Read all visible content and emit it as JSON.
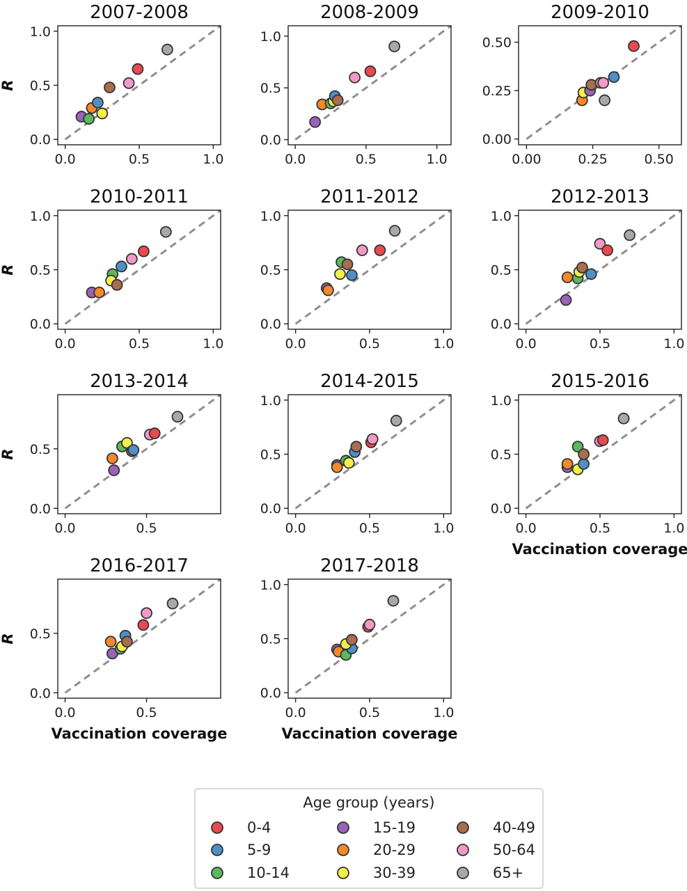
{
  "colors": {
    "0-4": "#e84a4f",
    "5-9": "#4f8fc6",
    "10-14": "#5cb85c",
    "15-19": "#9a62b8",
    "20-29": "#f5882b",
    "30-39": "#f3f04a",
    "40-49": "#a86e4f",
    "50-64": "#f29ac6",
    "65+": "#a8a8a8"
  },
  "legend": {
    "title": "Age group (years)",
    "entries": [
      "0-4",
      "5-9",
      "10-14",
      "15-19",
      "20-29",
      "30-39",
      "40-49",
      "50-64",
      "65+"
    ]
  },
  "chart_data": [
    {
      "type": "scatter",
      "title": "2007-2008",
      "xlim": [
        -0.05,
        1.05
      ],
      "ylim": [
        -0.05,
        1.05
      ],
      "xticks": [
        0.0,
        0.5,
        1.0
      ],
      "xtick_labels": [
        "0.0",
        "0.5",
        "1.0"
      ],
      "yticks": [
        0.0,
        0.5,
        1.0
      ],
      "ytick_labels": [
        "0.0",
        "0.5",
        "1.0"
      ],
      "ylabel": "R",
      "xlabel": "",
      "diagonal": true,
      "points": [
        {
          "group": "15-19",
          "x": 0.11,
          "y": 0.21
        },
        {
          "group": "10-14",
          "x": 0.16,
          "y": 0.19
        },
        {
          "group": "20-29",
          "x": 0.18,
          "y": 0.29
        },
        {
          "group": "5-9",
          "x": 0.22,
          "y": 0.34
        },
        {
          "group": "30-39",
          "x": 0.25,
          "y": 0.24
        },
        {
          "group": "40-49",
          "x": 0.3,
          "y": 0.48
        },
        {
          "group": "50-64",
          "x": 0.43,
          "y": 0.52
        },
        {
          "group": "0-4",
          "x": 0.49,
          "y": 0.65
        },
        {
          "group": "65+",
          "x": 0.69,
          "y": 0.83
        }
      ]
    },
    {
      "type": "scatter",
      "title": "2008-2009",
      "xlim": [
        -0.05,
        1.1
      ],
      "ylim": [
        -0.05,
        1.1
      ],
      "xticks": [
        0.0,
        0.5,
        1.0
      ],
      "xtick_labels": [
        "0.0",
        "0.5",
        "1.0"
      ],
      "yticks": [
        0.0,
        0.5,
        1.0
      ],
      "ytick_labels": [
        "0.0",
        "0.5",
        "1.0"
      ],
      "ylabel": "",
      "xlabel": "",
      "diagonal": true,
      "points": [
        {
          "group": "15-19",
          "x": 0.14,
          "y": 0.17
        },
        {
          "group": "20-29",
          "x": 0.19,
          "y": 0.34
        },
        {
          "group": "10-14",
          "x": 0.25,
          "y": 0.35
        },
        {
          "group": "30-39",
          "x": 0.27,
          "y": 0.37
        },
        {
          "group": "5-9",
          "x": 0.28,
          "y": 0.42
        },
        {
          "group": "40-49",
          "x": 0.3,
          "y": 0.38
        },
        {
          "group": "50-64",
          "x": 0.42,
          "y": 0.6
        },
        {
          "group": "0-4",
          "x": 0.53,
          "y": 0.66
        },
        {
          "group": "65+",
          "x": 0.7,
          "y": 0.9
        }
      ]
    },
    {
      "type": "scatter",
      "title": "2009-2010",
      "xlim": [
        -0.03,
        0.585
      ],
      "ylim": [
        -0.03,
        0.585
      ],
      "xticks": [
        0.0,
        0.25,
        0.5
      ],
      "xtick_labels": [
        "0.00",
        "0.25",
        "0.50"
      ],
      "yticks": [
        0.0,
        0.25,
        0.5
      ],
      "ytick_labels": [
        "0.00",
        "0.25",
        "0.50"
      ],
      "ylabel": "",
      "xlabel": "",
      "diagonal": true,
      "points": [
        {
          "group": "20-29",
          "x": 0.21,
          "y": 0.2
        },
        {
          "group": "30-39",
          "x": 0.215,
          "y": 0.24
        },
        {
          "group": "15-19",
          "x": 0.24,
          "y": 0.25
        },
        {
          "group": "40-49",
          "x": 0.245,
          "y": 0.28
        },
        {
          "group": "65+",
          "x": 0.295,
          "y": 0.2
        },
        {
          "group": "65+",
          "x": 0.28,
          "y": 0.29
        },
        {
          "group": "50-64",
          "x": 0.29,
          "y": 0.29
        },
        {
          "group": "5-9",
          "x": 0.33,
          "y": 0.32
        },
        {
          "group": "0-4",
          "x": 0.405,
          "y": 0.48
        }
      ]
    },
    {
      "type": "scatter",
      "title": "2010-2011",
      "xlim": [
        -0.05,
        1.05
      ],
      "ylim": [
        -0.05,
        1.05
      ],
      "xticks": [
        0.0,
        0.5,
        1.0
      ],
      "xtick_labels": [
        "0.0",
        "0.5",
        "1.0"
      ],
      "yticks": [
        0.0,
        0.5,
        1.0
      ],
      "ytick_labels": [
        "0.0",
        "0.5",
        "1.0"
      ],
      "ylabel": "R",
      "xlabel": "",
      "diagonal": true,
      "points": [
        {
          "group": "15-19",
          "x": 0.18,
          "y": 0.29
        },
        {
          "group": "20-29",
          "x": 0.23,
          "y": 0.29
        },
        {
          "group": "10-14",
          "x": 0.32,
          "y": 0.46
        },
        {
          "group": "30-39",
          "x": 0.31,
          "y": 0.4
        },
        {
          "group": "40-49",
          "x": 0.35,
          "y": 0.36
        },
        {
          "group": "5-9",
          "x": 0.38,
          "y": 0.53
        },
        {
          "group": "50-64",
          "x": 0.45,
          "y": 0.6
        },
        {
          "group": "0-4",
          "x": 0.53,
          "y": 0.67
        },
        {
          "group": "65+",
          "x": 0.68,
          "y": 0.85
        }
      ]
    },
    {
      "type": "scatter",
      "title": "2011-2012",
      "xlim": [
        -0.05,
        1.05
      ],
      "ylim": [
        -0.05,
        1.05
      ],
      "xticks": [
        0.0,
        0.5,
        1.0
      ],
      "xtick_labels": [
        "0.0",
        "0.5",
        "1.0"
      ],
      "yticks": [
        0.0,
        0.5,
        1.0
      ],
      "ytick_labels": [
        "0.0",
        "0.5",
        "1.0"
      ],
      "ylabel": "",
      "xlabel": "",
      "diagonal": true,
      "points": [
        {
          "group": "15-19",
          "x": 0.21,
          "y": 0.33
        },
        {
          "group": "20-29",
          "x": 0.22,
          "y": 0.31
        },
        {
          "group": "30-39",
          "x": 0.3,
          "y": 0.46
        },
        {
          "group": "10-14",
          "x": 0.31,
          "y": 0.57
        },
        {
          "group": "40-49",
          "x": 0.35,
          "y": 0.55
        },
        {
          "group": "5-9",
          "x": 0.38,
          "y": 0.45
        },
        {
          "group": "50-64",
          "x": 0.45,
          "y": 0.68
        },
        {
          "group": "0-4",
          "x": 0.57,
          "y": 0.68
        },
        {
          "group": "65+",
          "x": 0.67,
          "y": 0.86
        }
      ]
    },
    {
      "type": "scatter",
      "title": "2012-2013",
      "xlim": [
        -0.05,
        1.05
      ],
      "ylim": [
        -0.05,
        1.05
      ],
      "xticks": [
        0.0,
        0.5,
        1.0
      ],
      "xtick_labels": [
        "0.0",
        "0.5",
        "1.0"
      ],
      "yticks": [
        0.0,
        0.5,
        1.0
      ],
      "ytick_labels": [
        "0.0",
        "0.5",
        "1.0"
      ],
      "ylabel": "",
      "xlabel": "",
      "diagonal": true,
      "points": [
        {
          "group": "15-19",
          "x": 0.27,
          "y": 0.22
        },
        {
          "group": "20-29",
          "x": 0.28,
          "y": 0.43
        },
        {
          "group": "10-14",
          "x": 0.35,
          "y": 0.42
        },
        {
          "group": "30-39",
          "x": 0.36,
          "y": 0.48
        },
        {
          "group": "40-49",
          "x": 0.38,
          "y": 0.52
        },
        {
          "group": "5-9",
          "x": 0.44,
          "y": 0.46
        },
        {
          "group": "50-64",
          "x": 0.5,
          "y": 0.74
        },
        {
          "group": "0-4",
          "x": 0.55,
          "y": 0.68
        },
        {
          "group": "65+",
          "x": 0.7,
          "y": 0.82
        }
      ]
    },
    {
      "type": "scatter",
      "title": "2013-2014",
      "xlim": [
        -0.045,
        0.955
      ],
      "ylim": [
        -0.045,
        0.955
      ],
      "xticks": [
        0.0,
        0.5
      ],
      "xtick_labels": [
        "0.0",
        "0.5"
      ],
      "yticks": [
        0.0,
        0.5
      ],
      "ytick_labels": [
        "0.0",
        "0.5"
      ],
      "ylabel": "R",
      "xlabel": "",
      "diagonal": true,
      "points": [
        {
          "group": "15-19",
          "x": 0.3,
          "y": 0.32
        },
        {
          "group": "20-29",
          "x": 0.29,
          "y": 0.42
        },
        {
          "group": "10-14",
          "x": 0.35,
          "y": 0.52
        },
        {
          "group": "30-39",
          "x": 0.38,
          "y": 0.55
        },
        {
          "group": "40-49",
          "x": 0.41,
          "y": 0.48
        },
        {
          "group": "5-9",
          "x": 0.42,
          "y": 0.49
        },
        {
          "group": "50-64",
          "x": 0.52,
          "y": 0.62
        },
        {
          "group": "0-4",
          "x": 0.55,
          "y": 0.63
        },
        {
          "group": "65+",
          "x": 0.69,
          "y": 0.77
        }
      ]
    },
    {
      "type": "scatter",
      "title": "2014-2015",
      "xlim": [
        -0.05,
        1.05
      ],
      "ylim": [
        -0.05,
        1.05
      ],
      "xticks": [
        0.0,
        0.5,
        1.0
      ],
      "xtick_labels": [
        "0.0",
        "0.5",
        "1.0"
      ],
      "yticks": [
        0.0,
        0.5,
        1.0
      ],
      "ytick_labels": [
        "0.0",
        "0.5",
        "1.0"
      ],
      "ylabel": "",
      "xlabel": "",
      "diagonal": true,
      "points": [
        {
          "group": "15-19",
          "x": 0.28,
          "y": 0.4
        },
        {
          "group": "20-29",
          "x": 0.28,
          "y": 0.38
        },
        {
          "group": "10-14",
          "x": 0.34,
          "y": 0.44
        },
        {
          "group": "30-39",
          "x": 0.36,
          "y": 0.42
        },
        {
          "group": "5-9",
          "x": 0.4,
          "y": 0.52
        },
        {
          "group": "40-49",
          "x": 0.41,
          "y": 0.57
        },
        {
          "group": "0-4",
          "x": 0.51,
          "y": 0.61
        },
        {
          "group": "50-64",
          "x": 0.52,
          "y": 0.64
        },
        {
          "group": "65+",
          "x": 0.68,
          "y": 0.81
        }
      ]
    },
    {
      "type": "scatter",
      "title": "2015-2016",
      "xlim": [
        -0.05,
        1.05
      ],
      "ylim": [
        -0.05,
        1.05
      ],
      "xticks": [
        0.0,
        0.5,
        1.0
      ],
      "xtick_labels": [
        "0.0",
        "0.5",
        "1.0"
      ],
      "yticks": [
        0.0,
        0.5,
        1.0
      ],
      "ytick_labels": [
        "0.0",
        "0.5",
        "1.0"
      ],
      "ylabel": "",
      "xlabel": "Vaccination coverage",
      "diagonal": true,
      "points": [
        {
          "group": "15-19",
          "x": 0.28,
          "y": 0.38
        },
        {
          "group": "20-29",
          "x": 0.28,
          "y": 0.41
        },
        {
          "group": "10-14",
          "x": 0.35,
          "y": 0.57
        },
        {
          "group": "30-39",
          "x": 0.35,
          "y": 0.36
        },
        {
          "group": "5-9",
          "x": 0.39,
          "y": 0.41
        },
        {
          "group": "40-49",
          "x": 0.39,
          "y": 0.5
        },
        {
          "group": "50-64",
          "x": 0.5,
          "y": 0.62
        },
        {
          "group": "0-4",
          "x": 0.52,
          "y": 0.63
        },
        {
          "group": "65+",
          "x": 0.66,
          "y": 0.83
        }
      ]
    },
    {
      "type": "scatter",
      "title": "2016-2017",
      "xlim": [
        -0.045,
        0.955
      ],
      "ylim": [
        -0.045,
        0.955
      ],
      "xticks": [
        0.0,
        0.5
      ],
      "xtick_labels": [
        "0.0",
        "0.5"
      ],
      "yticks": [
        0.0,
        0.5
      ],
      "ytick_labels": [
        "0.0",
        "0.5"
      ],
      "ylabel": "R",
      "xlabel": "Vaccination coverage",
      "diagonal": true,
      "points": [
        {
          "group": "15-19",
          "x": 0.29,
          "y": 0.33
        },
        {
          "group": "20-29",
          "x": 0.28,
          "y": 0.43
        },
        {
          "group": "10-14",
          "x": 0.34,
          "y": 0.37
        },
        {
          "group": "30-39",
          "x": 0.35,
          "y": 0.39
        },
        {
          "group": "5-9",
          "x": 0.37,
          "y": 0.48
        },
        {
          "group": "40-49",
          "x": 0.38,
          "y": 0.43
        },
        {
          "group": "0-4",
          "x": 0.48,
          "y": 0.57
        },
        {
          "group": "50-64",
          "x": 0.5,
          "y": 0.67
        },
        {
          "group": "65+",
          "x": 0.66,
          "y": 0.75
        }
      ]
    },
    {
      "type": "scatter",
      "title": "2017-2018",
      "xlim": [
        -0.05,
        1.05
      ],
      "ylim": [
        -0.05,
        1.05
      ],
      "xticks": [
        0.0,
        0.5,
        1.0
      ],
      "xtick_labels": [
        "0.0",
        "0.5",
        "1.0"
      ],
      "yticks": [
        0.0,
        0.5,
        1.0
      ],
      "ytick_labels": [
        "0.0",
        "0.5",
        "1.0"
      ],
      "ylabel": "",
      "xlabel": "Vaccination coverage",
      "diagonal": true,
      "points": [
        {
          "group": "15-19",
          "x": 0.28,
          "y": 0.4
        },
        {
          "group": "20-29",
          "x": 0.29,
          "y": 0.38
        },
        {
          "group": "10-14",
          "x": 0.34,
          "y": 0.35
        },
        {
          "group": "5-9",
          "x": 0.38,
          "y": 0.41
        },
        {
          "group": "30-39",
          "x": 0.34,
          "y": 0.45
        },
        {
          "group": "40-49",
          "x": 0.38,
          "y": 0.49
        },
        {
          "group": "0-4",
          "x": 0.49,
          "y": 0.61
        },
        {
          "group": "50-64",
          "x": 0.5,
          "y": 0.63
        },
        {
          "group": "65+",
          "x": 0.66,
          "y": 0.85
        }
      ]
    }
  ]
}
